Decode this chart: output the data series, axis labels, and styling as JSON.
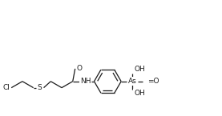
{
  "bg_color": "#ffffff",
  "line_color": "#1a1a1a",
  "line_width": 0.9,
  "font_size": 6.5,
  "figsize": [
    2.77,
    1.45
  ],
  "dpi": 100,
  "xlim": [
    0,
    277
  ],
  "ylim": [
    0,
    145
  ]
}
